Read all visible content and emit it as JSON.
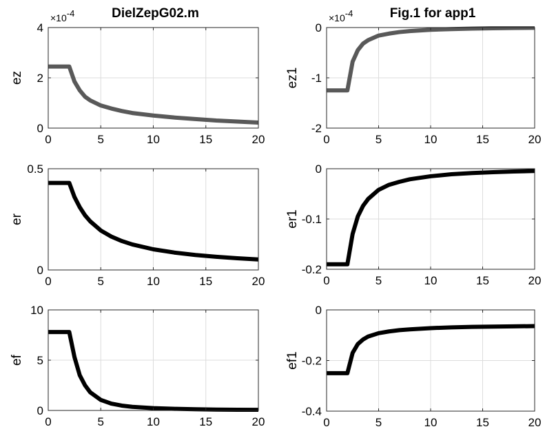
{
  "figure": {
    "background": "#ffffff"
  },
  "chart_data": [
    {
      "type": "line",
      "title": "DielZepG02.m",
      "xlabel": "",
      "ylabel": "ez",
      "exponent_label": "×10",
      "exponent_power": "-4",
      "xlim": [
        0,
        20
      ],
      "ylim": [
        0,
        4
      ],
      "xticks": [
        0,
        5,
        10,
        15,
        20
      ],
      "xtick_labels": [
        "0",
        "5",
        "10",
        "15",
        "20"
      ],
      "yticks": [
        0,
        2,
        4
      ],
      "ytick_labels": [
        "0",
        "2",
        "4"
      ],
      "grid": true,
      "line_color": "#595959",
      "series": [
        {
          "x": [
            0,
            1,
            1.8,
            2,
            2.5,
            3,
            3.5,
            4,
            5,
            6,
            7,
            8,
            10,
            12,
            14,
            16,
            18,
            20
          ],
          "y": [
            2.45,
            2.45,
            2.45,
            2.45,
            1.85,
            1.5,
            1.25,
            1.1,
            0.9,
            0.78,
            0.68,
            0.6,
            0.5,
            0.42,
            0.36,
            0.3,
            0.26,
            0.22
          ]
        }
      ]
    },
    {
      "type": "line",
      "title": "Fig.1 for app1",
      "xlabel": "",
      "ylabel": "ez1",
      "exponent_label": "×10",
      "exponent_power": "-4",
      "xlim": [
        0,
        20
      ],
      "ylim": [
        -2,
        0
      ],
      "xticks": [
        0,
        5,
        10,
        15,
        20
      ],
      "xtick_labels": [
        "0",
        "5",
        "10",
        "15",
        "20"
      ],
      "yticks": [
        -2,
        -1,
        0
      ],
      "ytick_labels": [
        "-2",
        "-1",
        "0"
      ],
      "grid": true,
      "line_color": "#595959",
      "series": [
        {
          "x": [
            0,
            1,
            1.8,
            2,
            2.5,
            3,
            3.5,
            4,
            5,
            6,
            7,
            8,
            10,
            12,
            14,
            16,
            18,
            20
          ],
          "y": [
            -1.25,
            -1.25,
            -1.25,
            -1.25,
            -0.68,
            -0.45,
            -0.32,
            -0.25,
            -0.16,
            -0.12,
            -0.09,
            -0.07,
            -0.045,
            -0.03,
            -0.02,
            -0.013,
            -0.008,
            -0.005
          ]
        }
      ]
    },
    {
      "type": "line",
      "title": "",
      "xlabel": "",
      "ylabel": "er",
      "xlim": [
        0,
        20
      ],
      "ylim": [
        0,
        0.5
      ],
      "xticks": [
        0,
        5,
        10,
        15,
        20
      ],
      "xtick_labels": [
        "0",
        "5",
        "10",
        "15",
        "20"
      ],
      "yticks": [
        0,
        0.5
      ],
      "ytick_labels": [
        "0",
        "0.5"
      ],
      "grid": true,
      "line_color": "#000000",
      "series": [
        {
          "x": [
            0,
            1,
            1.8,
            2,
            2.5,
            3,
            3.5,
            4,
            5,
            6,
            7,
            8,
            10,
            12,
            14,
            16,
            18,
            20
          ],
          "y": [
            0.43,
            0.43,
            0.43,
            0.43,
            0.36,
            0.31,
            0.27,
            0.24,
            0.195,
            0.165,
            0.143,
            0.126,
            0.102,
            0.086,
            0.074,
            0.065,
            0.058,
            0.052
          ]
        }
      ]
    },
    {
      "type": "line",
      "title": "",
      "xlabel": "",
      "ylabel": "er1",
      "xlim": [
        0,
        20
      ],
      "ylim": [
        -0.2,
        0
      ],
      "xticks": [
        0,
        5,
        10,
        15,
        20
      ],
      "xtick_labels": [
        "0",
        "5",
        "10",
        "15",
        "20"
      ],
      "yticks": [
        -0.2,
        -0.1,
        0
      ],
      "ytick_labels": [
        "-0.2",
        "-0.1",
        "0"
      ],
      "grid": true,
      "line_color": "#000000",
      "series": [
        {
          "x": [
            0,
            1,
            1.8,
            2,
            2.5,
            3,
            3.5,
            4,
            5,
            6,
            7,
            8,
            10,
            12,
            14,
            16,
            18,
            20
          ],
          "y": [
            -0.19,
            -0.19,
            -0.19,
            -0.19,
            -0.13,
            -0.095,
            -0.074,
            -0.06,
            -0.042,
            -0.032,
            -0.026,
            -0.021,
            -0.015,
            -0.011,
            -0.0085,
            -0.0068,
            -0.0055,
            -0.0045
          ]
        }
      ]
    },
    {
      "type": "line",
      "title": "",
      "xlabel": "",
      "ylabel": "ef",
      "xlim": [
        0,
        20
      ],
      "ylim": [
        0,
        10
      ],
      "xticks": [
        0,
        5,
        10,
        15,
        20
      ],
      "xtick_labels": [
        "0",
        "5",
        "10",
        "15",
        "20"
      ],
      "yticks": [
        0,
        5,
        10
      ],
      "ytick_labels": [
        "0",
        "5",
        "10"
      ],
      "grid": true,
      "line_color": "#000000",
      "series": [
        {
          "x": [
            0,
            1,
            1.8,
            2,
            2.5,
            3,
            3.5,
            4,
            5,
            6,
            7,
            8,
            10,
            12,
            14,
            16,
            18,
            20
          ],
          "y": [
            7.8,
            7.8,
            7.8,
            7.8,
            5.3,
            3.5,
            2.5,
            1.8,
            1.05,
            0.68,
            0.48,
            0.36,
            0.23,
            0.16,
            0.12,
            0.09,
            0.07,
            0.06
          ]
        }
      ]
    },
    {
      "type": "line",
      "title": "",
      "xlabel": "",
      "ylabel": "ef1",
      "xlim": [
        0,
        20
      ],
      "ylim": [
        -0.4,
        0
      ],
      "xticks": [
        0,
        5,
        10,
        15,
        20
      ],
      "xtick_labels": [
        "0",
        "5",
        "10",
        "15",
        "20"
      ],
      "yticks": [
        -0.4,
        -0.2,
        0
      ],
      "ytick_labels": [
        "-0.4",
        "-0.2",
        "0"
      ],
      "grid": true,
      "line_color": "#000000",
      "series": [
        {
          "x": [
            0,
            1,
            1.8,
            2,
            2.5,
            3,
            3.5,
            4,
            5,
            6,
            7,
            8,
            10,
            12,
            14,
            16,
            18,
            20
          ],
          "y": [
            -0.25,
            -0.25,
            -0.25,
            -0.25,
            -0.17,
            -0.135,
            -0.117,
            -0.105,
            -0.092,
            -0.085,
            -0.08,
            -0.077,
            -0.072,
            -0.069,
            -0.067,
            -0.066,
            -0.065,
            -0.064
          ]
        }
      ]
    }
  ]
}
